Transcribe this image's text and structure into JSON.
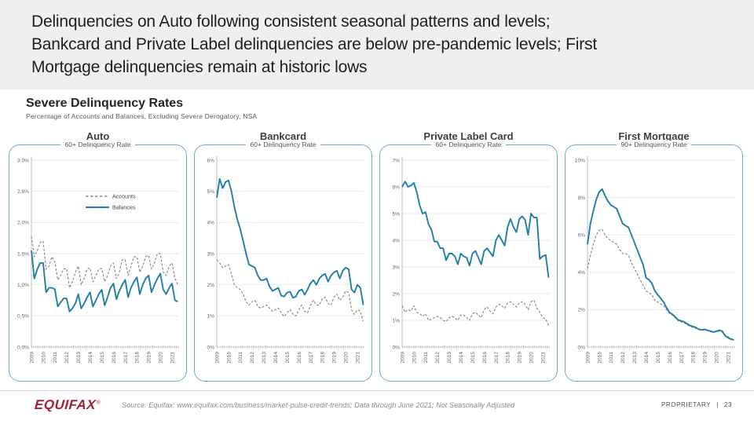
{
  "header": {
    "title": "Delinquencies on Auto following consistent seasonal patterns and levels;\nBankcard and Private Label delinquencies are below pre-pandemic levels; First\nMortgage delinquencies remain at historic lows"
  },
  "section": {
    "title": "Severe Delinquency Rates",
    "subtitle": "Percentage of Accounts and Balances, Excluding Severe Derogatory, NSA"
  },
  "colors": {
    "balances_blue": "#1f7ea6",
    "accounts_gray": "#8c8c8c",
    "panel_border": "#6fa8cc",
    "gridline": "#e3e3e3",
    "axis": "#b0b0b0",
    "logo_red": "#a32035"
  },
  "legend": {
    "accounts_label": "Accounts",
    "balances_label": "Balances"
  },
  "chart_data": [
    {
      "type": "line",
      "title": "Auto",
      "subtitle": "60+ Delinquency Rate",
      "ylim": [
        0,
        3
      ],
      "ytick_values": [
        0,
        0.5,
        1,
        1.5,
        2,
        2.5,
        3
      ],
      "ytick_labels": [
        "0.0%",
        "0.5%",
        "1.0%",
        "1.5%",
        "2.0%",
        "2.5%",
        "3.0%"
      ],
      "year_labels": [
        "2009",
        "2010",
        "2011",
        "2012",
        "2013",
        "2014",
        "2015",
        "2016",
        "2017",
        "2018",
        "2019",
        "2020",
        "2021"
      ],
      "x_start": 2009,
      "x_step": 0.25,
      "x_max": 2021.6,
      "show_legend": true,
      "series": [
        {
          "name": "Accounts",
          "style": "dashed",
          "values": [
            1.78,
            1.45,
            1.55,
            1.68,
            1.7,
            1.25,
            1.3,
            1.45,
            1.37,
            1.08,
            1.15,
            1.25,
            1.26,
            0.95,
            1.05,
            1.2,
            1.3,
            1.0,
            1.1,
            1.25,
            1.27,
            1.05,
            1.15,
            1.25,
            1.26,
            1.05,
            1.15,
            1.3,
            1.35,
            1.1,
            1.2,
            1.4,
            1.4,
            1.15,
            1.3,
            1.45,
            1.45,
            1.2,
            1.3,
            1.45,
            1.47,
            1.25,
            1.35,
            1.5,
            1.5,
            1.2,
            1.15,
            1.3,
            1.35,
            1.1,
            1.0
          ]
        },
        {
          "name": "Balances",
          "style": "solid",
          "values": [
            1.55,
            1.1,
            1.25,
            1.35,
            1.35,
            0.88,
            0.95,
            0.95,
            0.93,
            0.65,
            0.72,
            0.78,
            0.78,
            0.57,
            0.62,
            0.7,
            0.85,
            0.62,
            0.7,
            0.8,
            0.88,
            0.65,
            0.75,
            0.85,
            0.92,
            0.67,
            0.8,
            0.95,
            1.02,
            0.77,
            0.9,
            1.0,
            1.08,
            0.8,
            0.95,
            1.05,
            1.12,
            0.85,
            1.0,
            1.1,
            1.15,
            0.88,
            1.0,
            1.1,
            1.18,
            0.92,
            0.85,
            0.95,
            1.02,
            0.75,
            0.73
          ]
        }
      ]
    },
    {
      "type": "line",
      "title": "Bankcard",
      "subtitle": "60+ Delinquency Rate",
      "ylim": [
        0,
        6
      ],
      "ytick_values": [
        0,
        1,
        2,
        3,
        4,
        5,
        6
      ],
      "ytick_labels": [
        "0%",
        "1%",
        "2%",
        "3%",
        "4%",
        "5%",
        "6%"
      ],
      "year_labels": [
        "2009",
        "2010",
        "2011",
        "2012",
        "2013",
        "2014",
        "2015",
        "2016",
        "2017",
        "2018",
        "2019",
        "2020",
        "2021"
      ],
      "x_start": 2009,
      "x_step": 0.25,
      "x_max": 2021.6,
      "show_legend": false,
      "series": [
        {
          "name": "Accounts",
          "style": "dashed",
          "values": [
            2.8,
            2.7,
            2.55,
            2.6,
            2.65,
            2.35,
            2.0,
            1.9,
            1.85,
            1.7,
            1.45,
            1.35,
            1.45,
            1.5,
            1.3,
            1.25,
            1.3,
            1.35,
            1.25,
            1.15,
            1.2,
            1.25,
            1.1,
            0.98,
            1.1,
            1.2,
            1.05,
            1.0,
            1.2,
            1.35,
            1.15,
            1.1,
            1.35,
            1.5,
            1.35,
            1.35,
            1.55,
            1.6,
            1.4,
            1.35,
            1.6,
            1.7,
            1.5,
            1.6,
            1.8,
            1.75,
            1.2,
            1.05,
            1.2,
            1.15,
            0.82
          ]
        },
        {
          "name": "Balances",
          "style": "solid",
          "values": [
            4.8,
            5.4,
            5.1,
            5.3,
            5.35,
            5.0,
            4.5,
            4.1,
            3.8,
            3.4,
            3.0,
            2.65,
            2.6,
            2.55,
            2.3,
            2.15,
            2.15,
            2.2,
            1.95,
            1.8,
            1.85,
            1.9,
            1.65,
            1.62,
            1.75,
            1.78,
            1.58,
            1.62,
            1.8,
            1.85,
            1.68,
            1.85,
            2.05,
            2.15,
            2.0,
            2.2,
            2.3,
            2.35,
            2.1,
            2.3,
            2.4,
            2.45,
            2.2,
            2.45,
            2.55,
            2.5,
            1.85,
            1.75,
            2.0,
            1.9,
            1.35
          ]
        }
      ]
    },
    {
      "type": "line",
      "title": "Private Label Card",
      "subtitle": "60+ Delinquency Rate",
      "ylim": [
        0,
        7
      ],
      "ytick_values": [
        0,
        1,
        2,
        3,
        4,
        5,
        6,
        7
      ],
      "ytick_labels": [
        "0%",
        "1%",
        "2%",
        "3%",
        "4%",
        "5%",
        "6%",
        "7%"
      ],
      "year_labels": [
        "2009",
        "2010",
        "2011",
        "2012",
        "2013",
        "2014",
        "2015",
        "2016",
        "2017",
        "2018",
        "2019",
        "2020",
        "2021"
      ],
      "x_start": 2009,
      "x_step": 0.25,
      "x_max": 2021.6,
      "show_legend": false,
      "series": [
        {
          "name": "Accounts",
          "style": "dashed",
          "values": [
            1.55,
            1.3,
            1.4,
            1.35,
            1.55,
            1.3,
            1.25,
            1.15,
            1.25,
            1.0,
            1.05,
            1.1,
            1.15,
            1.1,
            1.0,
            0.95,
            1.1,
            1.15,
            1.1,
            1.0,
            1.2,
            1.2,
            1.1,
            1.0,
            1.25,
            1.3,
            1.2,
            1.1,
            1.4,
            1.5,
            1.35,
            1.25,
            1.5,
            1.6,
            1.55,
            1.45,
            1.65,
            1.7,
            1.6,
            1.5,
            1.65,
            1.7,
            1.6,
            1.4,
            1.7,
            1.75,
            1.45,
            1.3,
            1.1,
            1.05,
            0.8
          ]
        },
        {
          "name": "Balances",
          "style": "solid",
          "values": [
            6.0,
            6.2,
            6.0,
            6.05,
            6.15,
            5.8,
            5.3,
            5.0,
            5.05,
            4.6,
            4.4,
            3.95,
            3.95,
            3.7,
            3.7,
            3.25,
            3.5,
            3.5,
            3.4,
            3.1,
            3.5,
            3.4,
            3.35,
            3.05,
            3.5,
            3.6,
            3.35,
            3.1,
            3.6,
            3.7,
            3.55,
            3.4,
            4.0,
            4.2,
            4.0,
            3.8,
            4.5,
            4.8,
            4.5,
            4.3,
            4.8,
            4.9,
            4.75,
            4.2,
            5.0,
            4.85,
            4.85,
            3.3,
            3.4,
            3.45,
            2.6
          ]
        }
      ]
    },
    {
      "type": "line",
      "title": "First Mortgage",
      "subtitle": "90+ Delinquency Rate",
      "ylim": [
        0,
        10
      ],
      "ytick_values": [
        0,
        2,
        4,
        6,
        8,
        10
      ],
      "ytick_labels": [
        "0%",
        "2%",
        "4%",
        "6%",
        "8%",
        "10%"
      ],
      "year_labels": [
        "2009",
        "2010",
        "2011",
        "2012",
        "2013",
        "2014",
        "2015",
        "2016",
        "2017",
        "2018",
        "2019",
        "2020",
        "2021"
      ],
      "x_start": 2009,
      "x_step": 0.25,
      "x_max": 2021.6,
      "show_legend": false,
      "series": [
        {
          "name": "Accounts",
          "style": "dashed",
          "values": [
            4.2,
            4.9,
            5.5,
            6.0,
            6.25,
            6.3,
            6.0,
            5.8,
            5.7,
            5.6,
            5.5,
            5.2,
            5.0,
            5.0,
            4.9,
            4.5,
            4.2,
            3.9,
            3.6,
            3.3,
            3.0,
            2.9,
            2.8,
            2.5,
            2.4,
            2.3,
            2.2,
            2.0,
            1.8,
            1.7,
            1.55,
            1.4,
            1.35,
            1.3,
            1.2,
            1.1,
            1.05,
            1.0,
            0.95,
            0.9,
            0.92,
            0.88,
            0.85,
            0.82,
            0.8,
            0.85,
            0.8,
            0.65,
            0.55,
            0.45,
            0.4
          ]
        },
        {
          "name": "Balances",
          "style": "solid",
          "values": [
            5.5,
            6.6,
            7.3,
            7.9,
            8.3,
            8.45,
            8.1,
            7.8,
            7.6,
            7.5,
            7.4,
            7.0,
            6.6,
            6.5,
            6.4,
            6.0,
            5.6,
            5.2,
            4.8,
            4.4,
            3.7,
            3.6,
            3.4,
            3.0,
            2.8,
            2.6,
            2.4,
            2.1,
            1.85,
            1.75,
            1.6,
            1.45,
            1.4,
            1.35,
            1.25,
            1.15,
            1.1,
            1.05,
            0.95,
            0.92,
            0.95,
            0.9,
            0.85,
            0.8,
            0.85,
            0.9,
            0.85,
            0.6,
            0.5,
            0.42,
            0.38
          ]
        }
      ]
    }
  ],
  "footer": {
    "logo_text": "EQUIFAX",
    "logo_reg": "®",
    "source": "Source: Equifax: www.equifax.com/business/market-pulse-credit-trends; Data through June 2021; Not Seasonally Adjusted",
    "proprietary_label": "PROPRIETARY",
    "divider": "|",
    "page_number": "23"
  }
}
